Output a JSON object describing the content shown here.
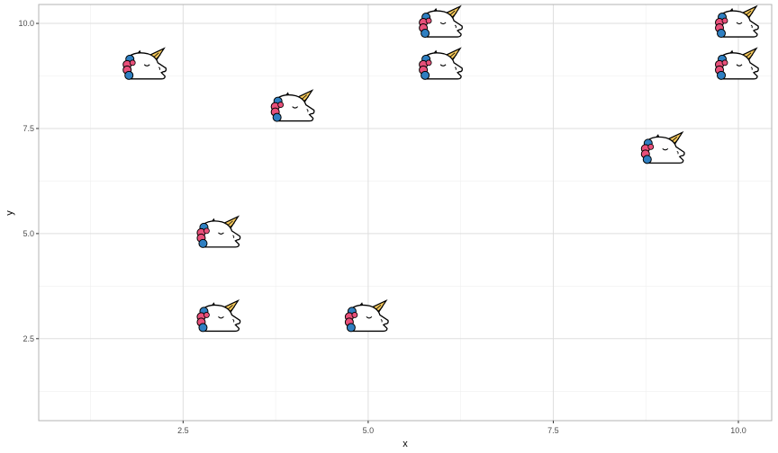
{
  "chart_data": {
    "type": "scatter",
    "marker": "unicorn-icon",
    "xlabel": "x",
    "ylabel": "y",
    "xlim": [
      0.55,
      10.45
    ],
    "ylim": [
      0.55,
      10.45
    ],
    "x_ticks": [
      2.5,
      5.0,
      7.5,
      10.0
    ],
    "x_tick_labels": [
      "2.5",
      "5.0",
      "7.5",
      "10.0"
    ],
    "y_ticks": [
      2.5,
      5.0,
      7.5,
      10.0
    ],
    "y_tick_labels": [
      "2.5",
      "5.0",
      "7.5",
      "10.0"
    ],
    "grid": true,
    "points": [
      {
        "x": 2,
        "y": 9
      },
      {
        "x": 3,
        "y": 5
      },
      {
        "x": 3,
        "y": 3
      },
      {
        "x": 4,
        "y": 8
      },
      {
        "x": 5,
        "y": 3
      },
      {
        "x": 6,
        "y": 10
      },
      {
        "x": 6,
        "y": 9
      },
      {
        "x": 9,
        "y": 7
      },
      {
        "x": 10,
        "y": 10
      },
      {
        "x": 10,
        "y": 9
      }
    ],
    "colors": {
      "panel_border": "#b3b3b3",
      "grid_major": "#dedede",
      "grid_minor": "#efefef",
      "horn": "#f2c65a",
      "mane_pink": "#e8507a",
      "mane_blue": "#2f7fc1",
      "outline": "#000000"
    }
  }
}
